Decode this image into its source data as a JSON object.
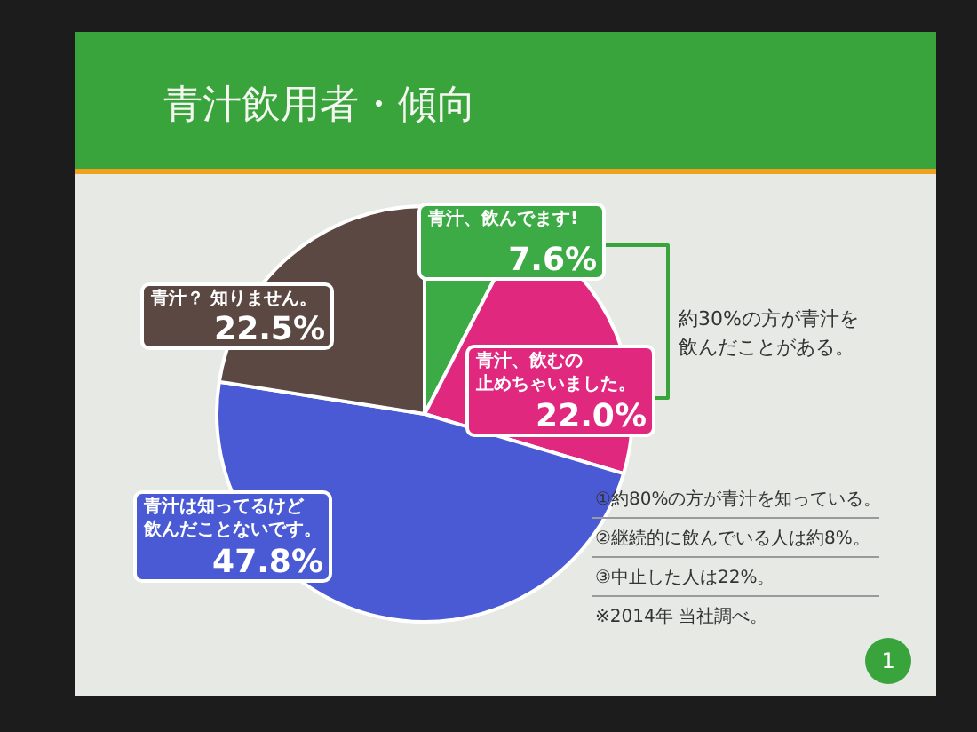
{
  "chart_data": {
    "type": "pie",
    "title": "青汁飲用者・傾向",
    "categories": [
      "青汁、飲んでます!",
      "青汁、飲むの止めちゃいました。",
      "青汁は知ってるけど飲んだことないです。",
      "青汁？ 知りません。"
    ],
    "values": [
      7.6,
      22.0,
      47.8,
      22.5
    ],
    "colors": [
      "#3dab45",
      "#e0287e",
      "#4a5ad4",
      "#5b4843"
    ],
    "value_labels": [
      "7.6%",
      "22.0%",
      "47.8%",
      "22.5%"
    ],
    "annotations": [
      "約30%の方が青汁を飲んだことがある。",
      "①約80%の方が青汁を知っている。",
      "②継続的に飲んでいる人は約8%。",
      "③中止した人は22%。",
      "※2014年 当社調べ。",
      "1"
    ]
  }
}
